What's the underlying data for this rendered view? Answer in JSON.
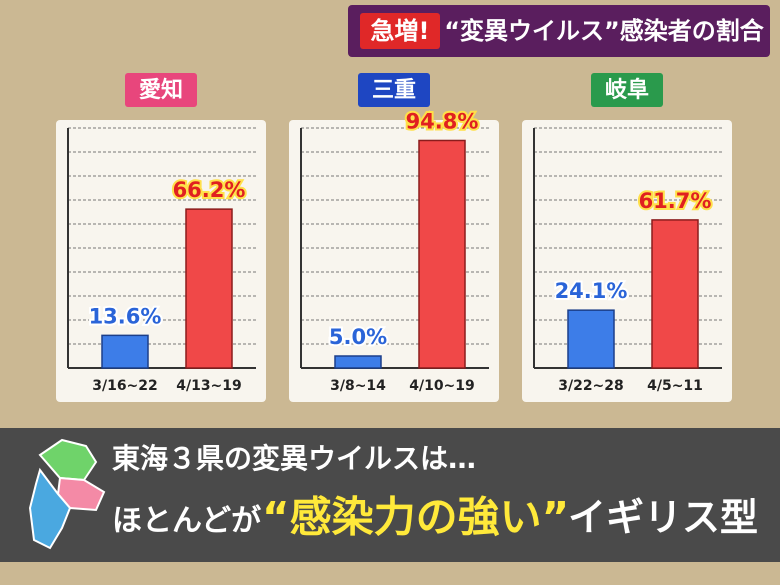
{
  "header": {
    "alert": "急増!",
    "title": "“変異ウイルス”感染者の割合"
  },
  "chart_data": [
    {
      "type": "bar",
      "title": "愛知",
      "title_color": "#e8467c",
      "categories": [
        "3/16~22",
        "4/13~19"
      ],
      "values": [
        13.6,
        66.2
      ],
      "value_labels": [
        "13.6%",
        "66.2%"
      ],
      "colors": [
        "#3d7de8",
        "#f04848"
      ],
      "ylim": [
        0,
        100
      ],
      "yticks": [
        0,
        10,
        20,
        30,
        40,
        50,
        60,
        70,
        80,
        90,
        100
      ],
      "grid": true
    },
    {
      "type": "bar",
      "title": "三重",
      "title_color": "#1e46c2",
      "categories": [
        "3/8~14",
        "4/10~19"
      ],
      "values": [
        5.0,
        94.8
      ],
      "value_labels": [
        "5.0%",
        "94.8%"
      ],
      "colors": [
        "#3d7de8",
        "#f04848"
      ],
      "ylim": [
        0,
        100
      ],
      "yticks": [
        0,
        10,
        20,
        30,
        40,
        50,
        60,
        70,
        80,
        90,
        100
      ],
      "grid": true
    },
    {
      "type": "bar",
      "title": "岐阜",
      "title_color": "#2a9a4c",
      "categories": [
        "3/22~28",
        "4/5~11"
      ],
      "values": [
        24.1,
        61.7
      ],
      "value_labels": [
        "24.1%",
        "61.7%"
      ],
      "colors": [
        "#3d7de8",
        "#f04848"
      ],
      "ylim": [
        0,
        100
      ],
      "yticks": [
        0,
        10,
        20,
        30,
        40,
        50,
        60,
        70,
        80,
        90,
        100
      ],
      "grid": true
    }
  ],
  "caption": {
    "line1": "東海３県の変異ウイルスは…",
    "line2_start": "ほとんどが",
    "line2_highlight": "“感染力の強い”",
    "line2_end": "イギリス型"
  }
}
